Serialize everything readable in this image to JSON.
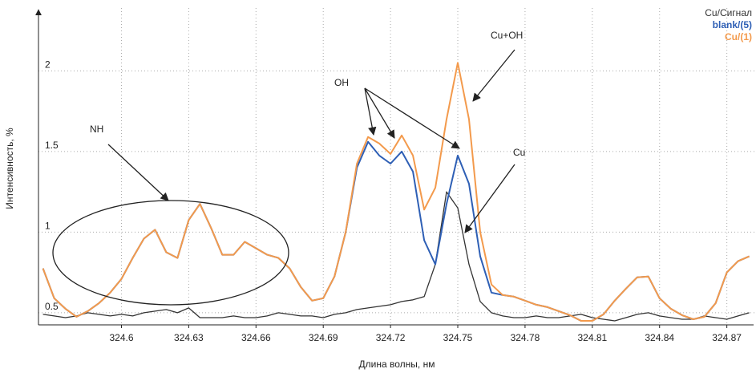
{
  "chart_data": {
    "type": "line",
    "y_label": "Интенсивность, %",
    "x_label": "Длина волны, нм",
    "x": [
      324.565,
      324.57,
      324.575,
      324.58,
      324.585,
      324.59,
      324.595,
      324.6,
      324.605,
      324.61,
      324.615,
      324.62,
      324.625,
      324.63,
      324.635,
      324.64,
      324.645,
      324.65,
      324.655,
      324.66,
      324.665,
      324.67,
      324.675,
      324.68,
      324.685,
      324.69,
      324.695,
      324.7,
      324.705,
      324.71,
      324.715,
      324.72,
      324.725,
      324.73,
      324.735,
      324.74,
      324.745,
      324.75,
      324.755,
      324.76,
      324.765,
      324.77,
      324.775,
      324.78,
      324.785,
      324.79,
      324.795,
      324.8,
      324.805,
      324.81,
      324.815,
      324.82,
      324.825,
      324.83,
      324.835,
      324.84,
      324.845,
      324.85,
      324.855,
      324.86,
      324.865,
      324.87,
      324.875,
      324.88
    ],
    "series": [
      {
        "name": "Cu/Сигнал",
        "color": "#333333",
        "values": [
          0.49,
          0.48,
          0.47,
          0.48,
          0.5,
          0.49,
          0.48,
          0.49,
          0.48,
          0.5,
          0.51,
          0.52,
          0.5,
          0.53,
          0.47,
          0.47,
          0.47,
          0.48,
          0.47,
          0.47,
          0.48,
          0.5,
          0.49,
          0.48,
          0.48,
          0.47,
          0.49,
          0.5,
          0.52,
          0.53,
          0.54,
          0.55,
          0.57,
          0.58,
          0.6,
          0.8,
          1.25,
          1.15,
          0.8,
          0.57,
          0.5,
          0.48,
          0.47,
          0.47,
          0.48,
          0.47,
          0.47,
          0.48,
          0.49,
          0.47,
          0.46,
          0.45,
          0.47,
          0.49,
          0.5,
          0.48,
          0.47,
          0.46,
          0.46,
          0.48,
          0.47,
          0.46,
          0.48,
          0.5
        ]
      },
      {
        "name": "blank/(5)",
        "color": "#2e5fb5",
        "values": [
          0.775,
          0.59,
          0.525,
          0.475,
          0.51,
          0.56,
          0.625,
          0.71,
          0.84,
          0.96,
          1.015,
          0.875,
          0.84,
          1.075,
          1.175,
          1.025,
          0.86,
          0.86,
          0.94,
          0.9,
          0.86,
          0.84,
          0.775,
          0.66,
          0.575,
          0.59,
          0.725,
          1.0,
          1.4,
          1.56,
          1.475,
          1.425,
          1.5,
          1.375,
          0.95,
          0.8,
          1.175,
          1.475,
          1.3,
          0.85,
          0.625,
          0.61,
          0.6,
          0.575,
          0.55,
          0.535,
          0.51,
          0.485,
          0.45,
          0.45,
          0.49,
          0.575,
          0.65,
          0.72,
          0.725,
          0.59,
          0.525,
          0.485,
          0.46,
          0.475,
          0.56,
          0.75,
          0.82,
          0.85
        ]
      },
      {
        "name": "Cu/(1)",
        "color": "#f39a4c",
        "values": [
          0.775,
          0.59,
          0.525,
          0.475,
          0.51,
          0.56,
          0.625,
          0.71,
          0.84,
          0.96,
          1.015,
          0.875,
          0.84,
          1.075,
          1.175,
          1.025,
          0.86,
          0.86,
          0.94,
          0.9,
          0.86,
          0.84,
          0.775,
          0.66,
          0.575,
          0.59,
          0.725,
          1.0,
          1.425,
          1.59,
          1.55,
          1.485,
          1.6,
          1.475,
          1.14,
          1.275,
          1.7,
          2.05,
          1.7,
          1.0,
          0.675,
          0.61,
          0.6,
          0.575,
          0.55,
          0.535,
          0.51,
          0.485,
          0.45,
          0.45,
          0.49,
          0.575,
          0.65,
          0.72,
          0.725,
          0.59,
          0.525,
          0.485,
          0.46,
          0.475,
          0.56,
          0.75,
          0.82,
          0.85
        ]
      }
    ],
    "xlim": [
      324.563,
      324.883
    ],
    "ylim": [
      0.425,
      2.39
    ],
    "xticks": [
      324.6,
      324.63,
      324.66,
      324.69,
      324.72,
      324.75,
      324.78,
      324.81,
      324.84,
      324.87
    ],
    "yticks": [
      0.5,
      1,
      1.5,
      2
    ],
    "grid": true,
    "legend": "top-right",
    "annotations": [
      "NH",
      "OH",
      "Cu+OH",
      "Cu"
    ]
  }
}
